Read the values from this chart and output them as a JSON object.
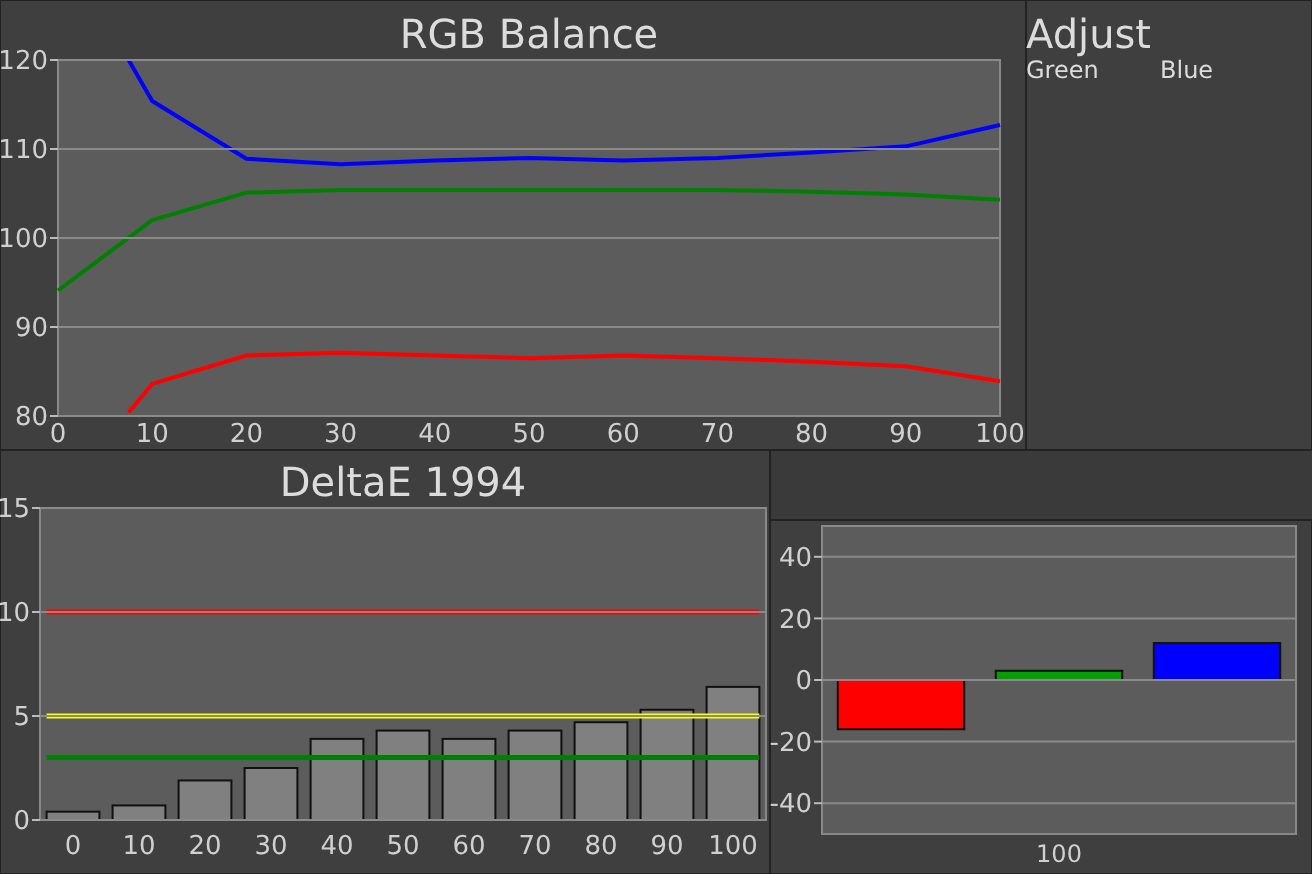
{
  "chart_data": [
    {
      "type": "line",
      "title": "RGB Balance",
      "xlim": [
        0,
        100
      ],
      "ylim": [
        80,
        120
      ],
      "xticks": [
        0,
        10,
        20,
        30,
        40,
        50,
        60,
        70,
        80,
        90,
        100
      ],
      "yticks": [
        80,
        90,
        100,
        110,
        120
      ],
      "grid": "y",
      "series": [
        {
          "color": "#0000ff",
          "x": [
            7.5,
            10,
            20,
            30,
            40,
            50,
            60,
            70,
            80,
            90,
            100
          ],
          "values": [
            120,
            115.4,
            108.9,
            108.3,
            108.7,
            109.0,
            108.7,
            109.0,
            109.6,
            110.3,
            112.7
          ]
        },
        {
          "color": "#008000",
          "x": [
            0,
            10,
            20,
            30,
            40,
            50,
            60,
            70,
            80,
            90,
            100
          ],
          "values": [
            94.1,
            102.0,
            105.1,
            105.4,
            105.4,
            105.4,
            105.4,
            105.4,
            105.2,
            104.9,
            104.3
          ]
        },
        {
          "color": "#ff0000",
          "x": [
            7.5,
            10,
            20,
            30,
            40,
            50,
            60,
            70,
            80,
            90,
            100
          ],
          "values": [
            80.4,
            83.6,
            86.8,
            87.1,
            86.8,
            86.5,
            86.8,
            86.5,
            86.1,
            85.6,
            83.9
          ]
        }
      ]
    },
    {
      "type": "other",
      "title": "Adjust",
      "annotations": [
        "Green",
        "Blue"
      ]
    },
    {
      "type": "bar",
      "title": "DeltaE 1994",
      "categories": [
        "0",
        "10",
        "20",
        "30",
        "40",
        "50",
        "60",
        "70",
        "80",
        "90",
        "100"
      ],
      "values": [
        0.4,
        0.7,
        1.9,
        2.5,
        3.9,
        4.3,
        3.9,
        4.3,
        4.7,
        5.3,
        6.4
      ],
      "color": "#808080",
      "ylim": [
        0,
        15
      ],
      "yticks": [
        0,
        5,
        10,
        15
      ],
      "grid": "y",
      "ref_lines": [
        {
          "axis": "y",
          "value": 10,
          "color": "#ff0000"
        },
        {
          "axis": "y",
          "value": 5,
          "color": "#ffff00"
        },
        {
          "axis": "y",
          "value": 3,
          "color": "#008000"
        }
      ]
    },
    {
      "type": "bar",
      "categories": [
        null,
        null,
        null
      ],
      "xlabel": "100",
      "values": [
        -16,
        3,
        12
      ],
      "colors": [
        "#ff0000",
        "#00a000",
        "#0000ff"
      ],
      "ylim": [
        -50,
        50
      ],
      "yticks": [
        -40,
        -20,
        0,
        20,
        40
      ],
      "grid": "y"
    }
  ]
}
